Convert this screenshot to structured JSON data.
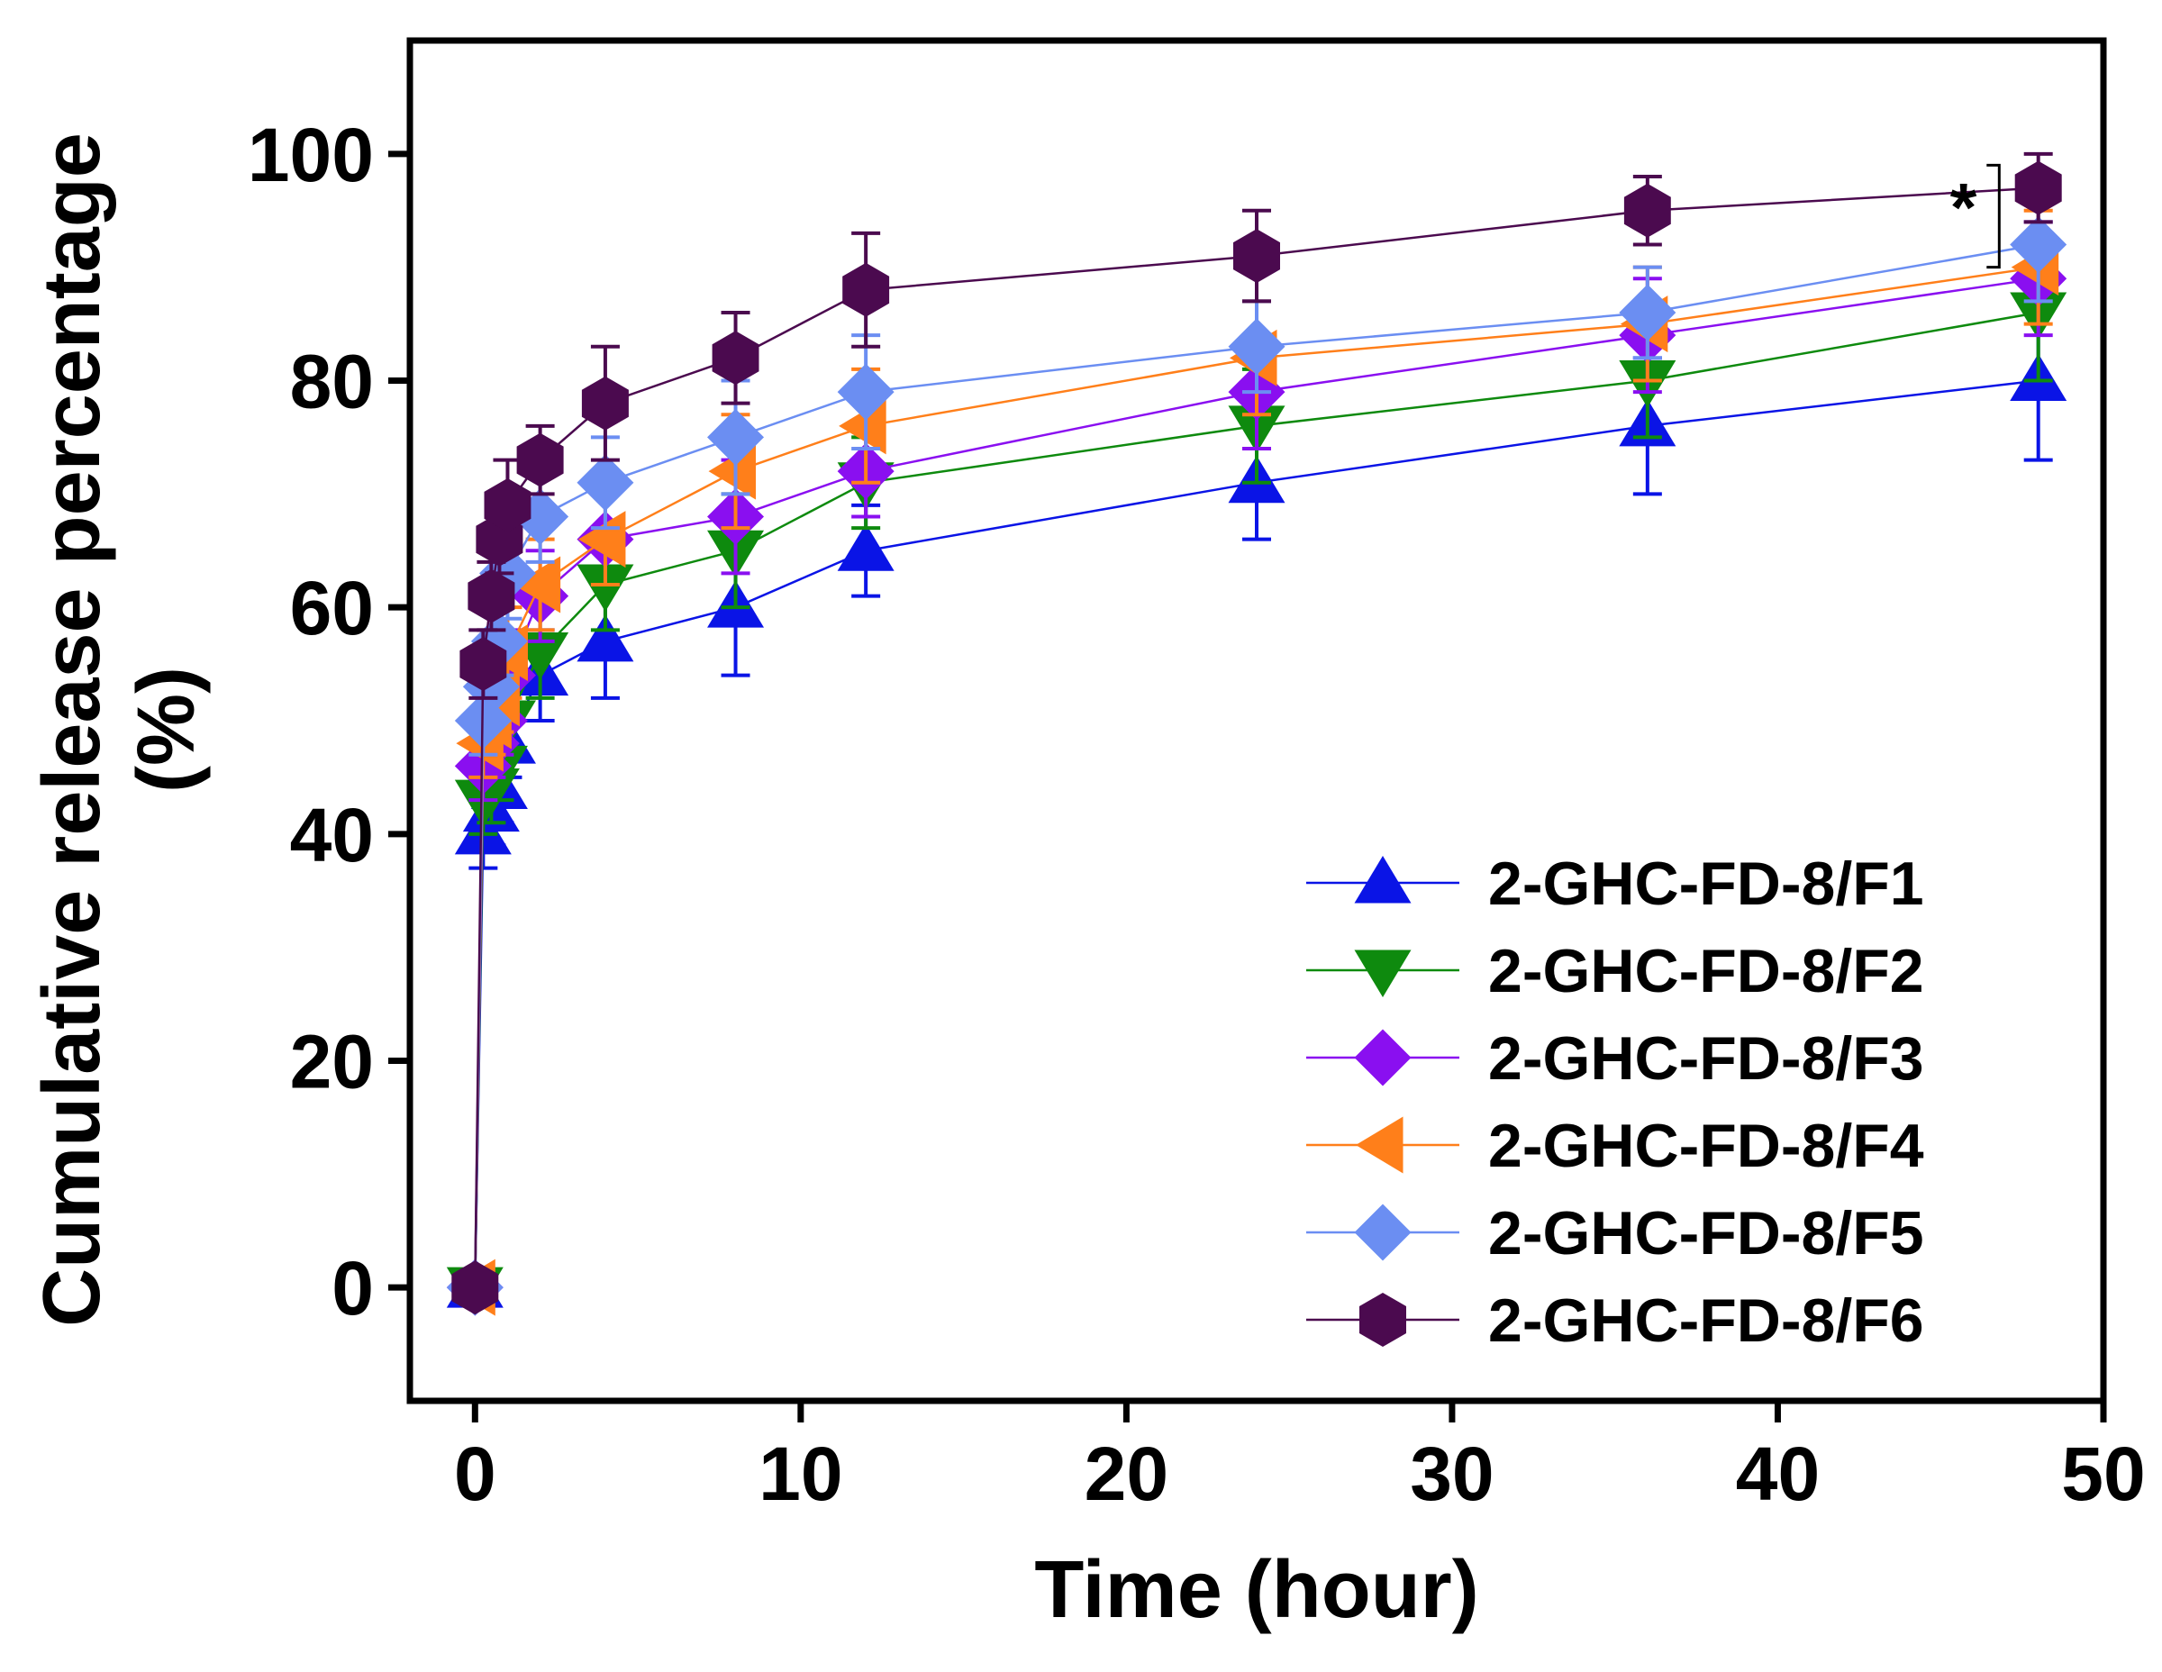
{
  "chart_data": {
    "type": "line",
    "xlabel": "Time (hour)",
    "ylabel": "Cumulative release percentage",
    "ylabel_unit": "(%)",
    "xlim": [
      -2,
      50
    ],
    "ylim": [
      -10,
      110
    ],
    "xticks": [
      0,
      10,
      20,
      30,
      40,
      50
    ],
    "yticks": [
      0,
      20,
      40,
      60,
      80,
      100
    ],
    "legend_position": "bottom-right",
    "annotation": "*",
    "x": [
      0,
      0.25,
      0.5,
      0.75,
      1,
      2,
      4,
      8,
      12,
      24,
      36,
      48
    ],
    "series": [
      {
        "name": "2-GHC-FD-8/F1",
        "marker": "triangle-up",
        "color": "#0a14e6",
        "values": [
          0,
          40,
          42,
          44,
          48,
          54,
          57,
          60,
          65,
          71,
          76,
          80
        ],
        "errors": [
          0,
          3,
          3,
          3,
          3,
          4,
          5,
          6,
          4,
          5,
          6,
          7
        ]
      },
      {
        "name": "2-GHC-FD-8/F2",
        "marker": "triangle-down",
        "color": "#0e8a0e",
        "values": [
          0,
          43,
          44,
          46,
          50,
          56,
          62,
          65,
          71,
          76,
          80,
          86
        ],
        "errors": [
          0,
          3,
          3,
          3,
          3,
          4,
          4,
          5,
          4,
          5,
          5,
          6
        ]
      },
      {
        "name": "2-GHC-FD-8/F3",
        "marker": "diamond",
        "color": "#8a0ff0",
        "values": [
          0,
          46,
          48,
          50,
          54,
          61,
          66,
          68,
          72,
          79,
          84,
          89
        ],
        "errors": [
          0,
          3,
          3,
          3,
          4,
          4,
          4,
          5,
          4,
          5,
          5,
          5
        ]
      },
      {
        "name": "2-GHC-FD-8/F4",
        "marker": "triangle-left",
        "color": "#ff7f1a",
        "values": [
          0,
          48,
          50,
          52,
          56,
          62,
          66,
          72,
          76,
          82,
          85,
          90
        ],
        "errors": [
          0,
          3,
          3,
          3,
          4,
          4,
          4,
          5,
          5,
          5,
          5,
          5
        ]
      },
      {
        "name": "2-GHC-FD-8/F5",
        "marker": "diamond",
        "color": "#6b8ef2",
        "values": [
          0,
          50,
          53,
          57,
          63,
          68,
          71,
          75,
          79,
          83,
          86,
          92
        ],
        "errors": [
          0,
          3,
          3,
          3,
          4,
          4,
          4,
          5,
          5,
          4,
          4,
          5
        ]
      },
      {
        "name": "2-GHC-FD-8/F6",
        "marker": "hexagon",
        "color": "#4b0a4f",
        "values": [
          0,
          55,
          61,
          66,
          69,
          73,
          78,
          82,
          88,
          91,
          95,
          97
        ],
        "errors": [
          0,
          3,
          3,
          3,
          4,
          3,
          5,
          4,
          5,
          4,
          3,
          3
        ]
      }
    ]
  }
}
